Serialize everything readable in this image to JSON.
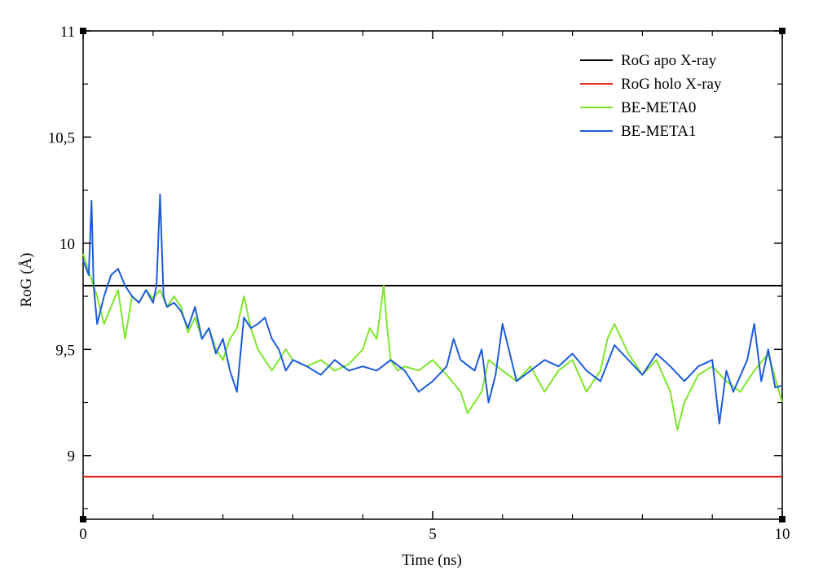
{
  "chart_data": {
    "type": "line",
    "title": "",
    "xlabel": "Time (ns)",
    "ylabel": "RoG (Å)",
    "xlim": [
      0,
      10
    ],
    "ylim": [
      8.7,
      11
    ],
    "x_ticks": [
      0,
      5,
      10
    ],
    "x_tick_labels": [
      "0",
      "5",
      "10"
    ],
    "y_ticks": [
      9,
      9.5,
      10,
      10.5,
      11
    ],
    "y_tick_labels": [
      "9",
      "9,5",
      "10",
      "10,5",
      "11"
    ],
    "grid": false,
    "legend_position": "top-right",
    "series": [
      {
        "name": "RoG apo X-ray",
        "color": "#000000",
        "style": "hline",
        "x": [
          0,
          10
        ],
        "y": [
          9.8,
          9.8
        ]
      },
      {
        "name": "RoG holo X-ray",
        "color": "#e8291c",
        "style": "hline",
        "x": [
          0,
          10
        ],
        "y": [
          8.9,
          8.9
        ]
      },
      {
        "name": "BE-META0",
        "color": "#7ee629",
        "x": [
          0,
          0.1,
          0.2,
          0.3,
          0.4,
          0.5,
          0.6,
          0.7,
          0.8,
          0.9,
          1.0,
          1.1,
          1.2,
          1.3,
          1.4,
          1.5,
          1.6,
          1.7,
          1.8,
          1.9,
          2.0,
          2.1,
          2.2,
          2.3,
          2.4,
          2.5,
          2.6,
          2.7,
          2.8,
          2.9,
          3.0,
          3.2,
          3.4,
          3.6,
          3.8,
          4.0,
          4.1,
          4.2,
          4.3,
          4.35,
          4.4,
          4.5,
          4.6,
          4.8,
          5.0,
          5.2,
          5.4,
          5.5,
          5.6,
          5.7,
          5.8,
          6.0,
          6.2,
          6.4,
          6.6,
          6.8,
          7.0,
          7.2,
          7.4,
          7.5,
          7.6,
          7.8,
          8.0,
          8.2,
          8.4,
          8.5,
          8.6,
          8.8,
          9.0,
          9.2,
          9.4,
          9.6,
          9.8,
          10.0
        ],
        "y": [
          9.95,
          9.85,
          9.75,
          9.62,
          9.7,
          9.78,
          9.55,
          9.75,
          9.72,
          9.78,
          9.74,
          9.78,
          9.7,
          9.75,
          9.7,
          9.58,
          9.65,
          9.55,
          9.6,
          9.5,
          9.45,
          9.55,
          9.6,
          9.75,
          9.6,
          9.5,
          9.45,
          9.4,
          9.45,
          9.5,
          9.45,
          9.42,
          9.45,
          9.4,
          9.43,
          9.5,
          9.6,
          9.55,
          9.8,
          9.6,
          9.45,
          9.4,
          9.42,
          9.4,
          9.45,
          9.38,
          9.3,
          9.2,
          9.25,
          9.3,
          9.45,
          9.4,
          9.35,
          9.42,
          9.3,
          9.4,
          9.45,
          9.3,
          9.4,
          9.55,
          9.62,
          9.48,
          9.38,
          9.45,
          9.3,
          9.12,
          9.25,
          9.38,
          9.42,
          9.35,
          9.3,
          9.4,
          9.48,
          9.25
        ]
      },
      {
        "name": "BE-META1",
        "color": "#1c5cdc",
        "x": [
          0,
          0.08,
          0.12,
          0.15,
          0.2,
          0.3,
          0.4,
          0.5,
          0.6,
          0.7,
          0.8,
          0.9,
          1.0,
          1.05,
          1.1,
          1.15,
          1.2,
          1.3,
          1.4,
          1.5,
          1.6,
          1.7,
          1.8,
          1.9,
          2.0,
          2.1,
          2.2,
          2.3,
          2.4,
          2.5,
          2.6,
          2.7,
          2.8,
          2.9,
          3.0,
          3.2,
          3.4,
          3.6,
          3.8,
          4.0,
          4.2,
          4.4,
          4.6,
          4.8,
          5.0,
          5.2,
          5.3,
          5.4,
          5.6,
          5.7,
          5.8,
          5.9,
          6.0,
          6.2,
          6.4,
          6.6,
          6.8,
          7.0,
          7.2,
          7.4,
          7.6,
          7.8,
          8.0,
          8.2,
          8.4,
          8.6,
          8.8,
          9.0,
          9.1,
          9.2,
          9.3,
          9.5,
          9.6,
          9.7,
          9.8,
          9.9,
          10.0
        ],
        "y": [
          9.92,
          9.85,
          10.2,
          9.8,
          9.62,
          9.75,
          9.85,
          9.88,
          9.8,
          9.75,
          9.72,
          9.78,
          9.72,
          9.8,
          10.23,
          9.75,
          9.7,
          9.72,
          9.68,
          9.6,
          9.7,
          9.55,
          9.6,
          9.48,
          9.55,
          9.4,
          9.3,
          9.65,
          9.6,
          9.62,
          9.65,
          9.55,
          9.5,
          9.4,
          9.45,
          9.42,
          9.38,
          9.45,
          9.4,
          9.42,
          9.4,
          9.45,
          9.4,
          9.3,
          9.35,
          9.42,
          9.55,
          9.45,
          9.4,
          9.5,
          9.25,
          9.38,
          9.62,
          9.35,
          9.4,
          9.45,
          9.42,
          9.48,
          9.4,
          9.35,
          9.52,
          9.45,
          9.38,
          9.48,
          9.42,
          9.35,
          9.42,
          9.45,
          9.15,
          9.4,
          9.3,
          9.45,
          9.62,
          9.35,
          9.5,
          9.32,
          9.33
        ]
      }
    ]
  }
}
